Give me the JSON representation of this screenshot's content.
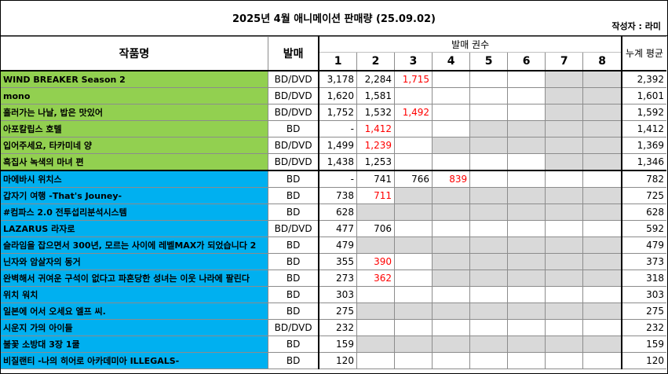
{
  "header": {
    "title": "2025년 4월 애니메이션 판매량 (25.09.02)",
    "author": "작성자 : 라미"
  },
  "columns": {
    "work": "작품명",
    "format": "발매",
    "volumes_group": "발매 권수",
    "volumes": [
      "1",
      "2",
      "3",
      "4",
      "5",
      "6",
      "7",
      "8"
    ],
    "average": "누계 평균"
  },
  "colors": {
    "group_green": "#92d050",
    "group_blue": "#00b0f0",
    "grey_cell": "#d9d9d9",
    "red_value": "#ff0000"
  },
  "rows": [
    {
      "title": "WIND BREAKER Season 2",
      "format": "BD/DVD",
      "group": "g1",
      "vols": [
        "3,178",
        "2,284",
        "1,715",
        "",
        "",
        "",
        "",
        ""
      ],
      "red": [
        false,
        false,
        true,
        false,
        false,
        false,
        false,
        false
      ],
      "grey": [
        false,
        false,
        false,
        false,
        false,
        false,
        true,
        true
      ],
      "avg": "2,392"
    },
    {
      "title": "mono",
      "format": "BD/DVD",
      "group": "g1",
      "vols": [
        "1,620",
        "1,581",
        "",
        "",
        "",
        "",
        "",
        ""
      ],
      "red": [
        false,
        false,
        false,
        false,
        false,
        false,
        false,
        false
      ],
      "grey": [
        false,
        false,
        false,
        false,
        false,
        false,
        true,
        true
      ],
      "avg": "1,601"
    },
    {
      "title": "흘러가는 나날, 밥은 맛있어",
      "format": "BD/DVD",
      "group": "g1",
      "vols": [
        "1,752",
        "1,532",
        "1,492",
        "",
        "",
        "",
        "",
        ""
      ],
      "red": [
        false,
        false,
        true,
        false,
        false,
        false,
        false,
        false
      ],
      "grey": [
        false,
        false,
        false,
        false,
        false,
        false,
        true,
        true
      ],
      "avg": "1,592"
    },
    {
      "title": "아포칼립스 호텔",
      "format": "BD",
      "group": "g1",
      "vols": [
        "-",
        "1,412",
        "",
        "",
        "",
        "",
        "",
        ""
      ],
      "red": [
        false,
        true,
        false,
        false,
        false,
        false,
        false,
        false
      ],
      "grey": [
        false,
        false,
        false,
        false,
        true,
        true,
        true,
        true
      ],
      "avg": "1,412"
    },
    {
      "title": "입어주세요, 타카미네 양",
      "format": "BD/DVD",
      "group": "g1",
      "vols": [
        "1,499",
        "1,239",
        "",
        "",
        "",
        "",
        "",
        ""
      ],
      "red": [
        false,
        true,
        false,
        false,
        false,
        false,
        false,
        false
      ],
      "grey": [
        false,
        false,
        false,
        true,
        true,
        true,
        true,
        true
      ],
      "avg": "1,369"
    },
    {
      "title": "흑집사 녹색의 마녀 편",
      "format": "BD/DVD",
      "group": "g1",
      "vols": [
        "1,438",
        "1,253",
        "",
        "",
        "",
        "",
        "",
        ""
      ],
      "red": [
        false,
        false,
        false,
        false,
        false,
        false,
        false,
        false
      ],
      "grey": [
        false,
        false,
        false,
        false,
        false,
        false,
        true,
        true
      ],
      "avg": "1,346"
    },
    {
      "title": "마에바시 위치스",
      "format": "BD",
      "group": "g2",
      "vols": [
        "-",
        "741",
        "766",
        "839",
        "",
        "",
        "",
        ""
      ],
      "red": [
        false,
        false,
        false,
        true,
        false,
        false,
        false,
        false
      ],
      "grey": [
        false,
        false,
        false,
        false,
        false,
        false,
        false,
        false
      ],
      "avg": "782"
    },
    {
      "title": "갑자기 여행 -That's Jouney-",
      "format": "BD",
      "group": "g2",
      "vols": [
        "738",
        "711",
        "",
        "",
        "",
        "",
        "",
        ""
      ],
      "red": [
        false,
        true,
        false,
        false,
        false,
        false,
        false,
        false
      ],
      "grey": [
        false,
        false,
        true,
        true,
        true,
        true,
        true,
        true
      ],
      "avg": "725"
    },
    {
      "title": "#컴파스 2.0 전투섭리분석시스템",
      "format": "BD",
      "group": "g2",
      "vols": [
        "628",
        "",
        "",
        "",
        "",
        "",
        "",
        ""
      ],
      "red": [
        false,
        false,
        false,
        false,
        false,
        false,
        false,
        false
      ],
      "grey": [
        false,
        true,
        true,
        true,
        true,
        true,
        true,
        true
      ],
      "avg": "628"
    },
    {
      "title": "LAZARUS 라자로",
      "format": "BD/DVD",
      "group": "g2",
      "vols": [
        "477",
        "706",
        "",
        "",
        "",
        "",
        "",
        ""
      ],
      "red": [
        false,
        false,
        false,
        false,
        false,
        false,
        false,
        false
      ],
      "grey": [
        false,
        false,
        false,
        false,
        false,
        false,
        false,
        false
      ],
      "avg": "592"
    },
    {
      "title": "슬라임을 잡으면서 300년, 모르는 사이에 레벨MAX가 되었습니다 2",
      "format": "BD",
      "group": "g2",
      "vols": [
        "479",
        "",
        "",
        "",
        "",
        "",
        "",
        ""
      ],
      "red": [
        false,
        false,
        false,
        false,
        false,
        false,
        false,
        false
      ],
      "grey": [
        false,
        true,
        true,
        true,
        true,
        true,
        true,
        true
      ],
      "avg": "479"
    },
    {
      "title": "닌자와 암살자의 동거",
      "format": "BD",
      "group": "g2",
      "vols": [
        "355",
        "390",
        "",
        "",
        "",
        "",
        "",
        ""
      ],
      "red": [
        false,
        true,
        false,
        false,
        false,
        false,
        false,
        false
      ],
      "grey": [
        false,
        false,
        false,
        true,
        true,
        true,
        true,
        true
      ],
      "avg": "373"
    },
    {
      "title": "완벽해서 귀여운 구석이 없다고 파혼당한 성녀는 이웃 나라에 팔린다",
      "format": "BD",
      "group": "g2",
      "vols": [
        "273",
        "362",
        "",
        "",
        "",
        "",
        "",
        ""
      ],
      "red": [
        false,
        true,
        false,
        false,
        false,
        false,
        false,
        false
      ],
      "grey": [
        false,
        false,
        false,
        true,
        true,
        true,
        true,
        true
      ],
      "avg": "318"
    },
    {
      "title": "위치 워치",
      "format": "BD",
      "group": "g2",
      "vols": [
        "303",
        "",
        "",
        "",
        "",
        "",
        "",
        ""
      ],
      "red": [
        false,
        false,
        false,
        false,
        false,
        false,
        false,
        false
      ],
      "grey": [
        false,
        false,
        false,
        false,
        false,
        false,
        false,
        false
      ],
      "avg": "303"
    },
    {
      "title": "일본에 어서 오세요 엘프 씨.",
      "format": "BD",
      "group": "g2",
      "vols": [
        "275",
        "",
        "",
        "",
        "",
        "",
        "",
        ""
      ],
      "red": [
        false,
        false,
        false,
        false,
        false,
        false,
        false,
        false
      ],
      "grey": [
        false,
        true,
        true,
        true,
        true,
        true,
        true,
        true
      ],
      "avg": "275"
    },
    {
      "title": "시운지 가의 아이들",
      "format": "BD/DVD",
      "group": "g2",
      "vols": [
        "232",
        "",
        "",
        "",
        "",
        "",
        "",
        ""
      ],
      "red": [
        false,
        false,
        false,
        false,
        false,
        false,
        false,
        false
      ],
      "grey": [
        false,
        false,
        false,
        false,
        false,
        false,
        false,
        false
      ],
      "avg": "232"
    },
    {
      "title": "불꽃 소방대 3장 1쿨",
      "format": "BD",
      "group": "g2",
      "vols": [
        "159",
        "",
        "",
        "",
        "",
        "",
        "",
        ""
      ],
      "red": [
        false,
        false,
        false,
        false,
        false,
        false,
        false,
        false
      ],
      "grey": [
        false,
        true,
        true,
        true,
        true,
        true,
        true,
        true
      ],
      "avg": "159"
    },
    {
      "title": "비질랜티 -나의 히어로 아카데미아 ILLEGALS-",
      "format": "BD",
      "group": "g2",
      "vols": [
        "120",
        "",
        "",
        "",
        "",
        "",
        "",
        ""
      ],
      "red": [
        false,
        false,
        false,
        false,
        false,
        false,
        false,
        false
      ],
      "grey": [
        false,
        false,
        false,
        false,
        false,
        false,
        false,
        false
      ],
      "avg": "120"
    }
  ]
}
